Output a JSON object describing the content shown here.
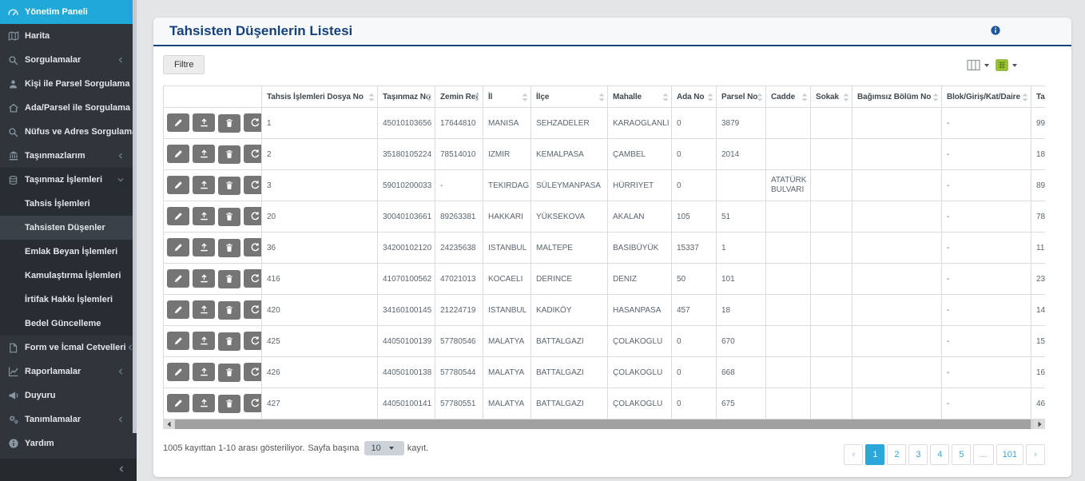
{
  "colors": {
    "accent": "#20a8d8",
    "title_navy": "#16427c",
    "sidebar_bg": "#2f353a",
    "excel_green": "#9dc832"
  },
  "sidebar": {
    "items": [
      {
        "id": "yonetim-paneli",
        "label": "Yönetim Paneli",
        "icon": "gauge-icon",
        "active": true
      },
      {
        "id": "harita",
        "label": "Harita",
        "icon": "map-icon"
      },
      {
        "id": "sorgulamalar",
        "label": "Sorgulamalar",
        "icon": "search-icon",
        "chevron": "left"
      },
      {
        "id": "kisi-ile-parsel-sorgulama",
        "label": "Kişi ile Parsel Sorgulama",
        "icon": "user-icon"
      },
      {
        "id": "ada-parsel-ile-sorgulama",
        "label": "Ada/Parsel ile Sorgulama",
        "icon": "home-icon"
      },
      {
        "id": "nufus-ve-adres-sorgulama",
        "label": "Nüfus ve Adres Sorgulama",
        "icon": "search-icon"
      },
      {
        "id": "tasinmazlarim",
        "label": "Taşınmazlarım",
        "icon": "bank-icon",
        "chevron": "left"
      },
      {
        "id": "tasinmaz-islemleri",
        "label": "Taşınmaz İşlemleri",
        "icon": "coins-icon",
        "chevron": "down",
        "open": true,
        "children": [
          {
            "id": "tahsis-islemleri",
            "label": "Tahsis İşlemleri"
          },
          {
            "id": "tahsisten-dusenler",
            "label": "Tahsisten Düşenler",
            "active": true
          },
          {
            "id": "emlak-beyan-islemleri",
            "label": "Emlak Beyan İşlemleri"
          },
          {
            "id": "kamulastirma-islemleri",
            "label": "Kamulaştırma İşlemleri"
          },
          {
            "id": "irtifak-hakki-islemleri",
            "label": "İrtifak Hakkı İşlemleri"
          },
          {
            "id": "bedel-guncelleme",
            "label": "Bedel Güncelleme"
          }
        ]
      },
      {
        "id": "form-ve-icmal-cetvelleri",
        "label": "Form ve İcmal Cetvelleri",
        "icon": "form-icon",
        "chevron": "left"
      },
      {
        "id": "raporlamalar",
        "label": "Raporlamalar",
        "icon": "chart-icon",
        "chevron": "left"
      },
      {
        "id": "duyuru",
        "label": "Duyuru",
        "icon": "megaphone-icon"
      },
      {
        "id": "tanimlamalar",
        "label": "Tanımlamalar",
        "icon": "gears-icon",
        "chevron": "left"
      },
      {
        "id": "yardim",
        "label": "Yardım",
        "icon": "info-icon"
      }
    ]
  },
  "panel": {
    "title": "Tahsisten Düşenlerin Listesi",
    "info_icon": "info-icon",
    "toolbar": {
      "filter_label": "Filtre",
      "columns_icon": "columns-icon",
      "excel_icon": "excel-icon"
    }
  },
  "table": {
    "columns": [
      {
        "id": "actions",
        "label": "",
        "sortable": false
      },
      {
        "id": "dosya-no",
        "label": "Tahsis İşlemleri Dosya No"
      },
      {
        "id": "tasinmaz-no",
        "label": "Taşınmaz No"
      },
      {
        "id": "zemin-ref",
        "label": "Zemin Ref"
      },
      {
        "id": "il",
        "label": "İl"
      },
      {
        "id": "ilce",
        "label": "İlçe"
      },
      {
        "id": "mahalle",
        "label": "Mahalle"
      },
      {
        "id": "ada-no",
        "label": "Ada No"
      },
      {
        "id": "parsel-no",
        "label": "Parsel No"
      },
      {
        "id": "cadde",
        "label": "Cadde"
      },
      {
        "id": "sokak",
        "label": "Sokak"
      },
      {
        "id": "bagimsiz-bolum-no",
        "label": "Bağımsız Bölüm No"
      },
      {
        "id": "blok",
        "label": "Blok/Giriş/Kat/Daire"
      },
      {
        "id": "ta",
        "label": "Ta"
      }
    ],
    "action_buttons": [
      {
        "id": "edit",
        "icon": "edit-icon"
      },
      {
        "id": "upload",
        "icon": "upload-icon"
      },
      {
        "id": "delete",
        "icon": "delete-icon"
      },
      {
        "id": "history",
        "icon": "history-icon"
      }
    ],
    "rows": [
      [
        "1",
        "45010103656",
        "17644810",
        "MANISA",
        "SEHZADELER",
        "KARAOGLANLI",
        "0",
        "3879",
        "",
        "",
        "",
        "-",
        "99"
      ],
      [
        "2",
        "35180105224",
        "78514010",
        "IZMIR",
        "KEMALPASA",
        "ÇAMBEL",
        "0",
        "2014",
        "",
        "",
        "",
        "-",
        "18"
      ],
      [
        "3",
        "59010200033",
        "-",
        "TEKIRDAG",
        "SÜLEYMANPASA",
        "HÜRRIYET",
        "0",
        "",
        "ATATÜRK BULVARI",
        "",
        "",
        "-",
        "89"
      ],
      [
        "20",
        "30040103661",
        "89263381",
        "HAKKARI",
        "YÜKSEKOVA",
        "AKALAN",
        "105",
        "51",
        "",
        "",
        "",
        "-",
        "78"
      ],
      [
        "36",
        "34200102120",
        "24235638",
        "ISTANBUL",
        "MALTEPE",
        "BASIBÜYÜK",
        "15337",
        "1",
        "",
        "",
        "",
        "-",
        "11"
      ],
      [
        "416",
        "41070100562",
        "47021013",
        "KOCAELI",
        "DERINCE",
        "DENIZ",
        "50",
        "101",
        "",
        "",
        "",
        "-",
        "23"
      ],
      [
        "420",
        "34160100145",
        "21224719",
        "ISTANBUL",
        "KADIKÖY",
        "HASANPASA",
        "457",
        "18",
        "",
        "",
        "",
        "-",
        "14"
      ],
      [
        "425",
        "44050100139",
        "57780546",
        "MALATYA",
        "BATTALGAZI",
        "ÇOLAKOGLU",
        "0",
        "670",
        "",
        "",
        "",
        "-",
        "15"
      ],
      [
        "426",
        "44050100138",
        "57780544",
        "MALATYA",
        "BATTALGAZI",
        "ÇOLAKOGLU",
        "0",
        "668",
        "",
        "",
        "",
        "-",
        "16"
      ],
      [
        "427",
        "44050100141",
        "57780551",
        "MALATYA",
        "BATTALGAZI",
        "ÇOLAKOGLU",
        "0",
        "675",
        "",
        "",
        "",
        "-",
        "46"
      ]
    ]
  },
  "footer": {
    "summary": "1005 kayıttan 1-10 arası gösteriliyor.",
    "per_page_prefix": "Sayfa başına",
    "per_page_value": "10",
    "per_page_suffix": "kayıt."
  },
  "pagination": {
    "prev": "‹",
    "pages": [
      "1",
      "2",
      "3",
      "4",
      "5",
      "...",
      "101"
    ],
    "active": "1",
    "next": "›"
  }
}
